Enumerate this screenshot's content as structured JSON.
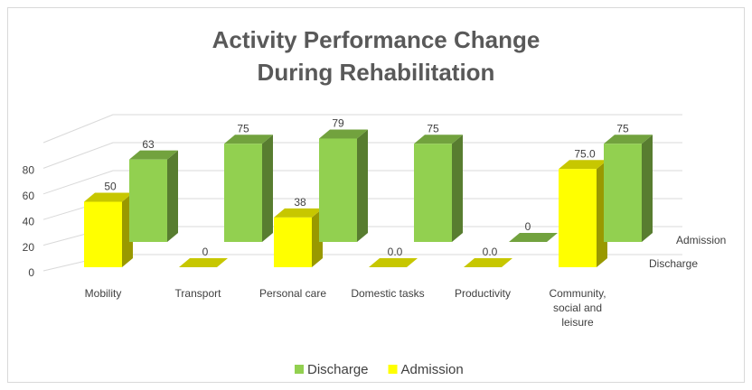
{
  "chart_data": {
    "type": "bar3d",
    "title": "Activity Performance Change During Rehabilitation",
    "categories": [
      "Mobility",
      "Transport",
      "Personal care",
      "Domestic tasks",
      "Productivity",
      "Community, social and leisure"
    ],
    "series": [
      {
        "name": "Discharge",
        "color": "#92d050",
        "values": [
          63,
          75,
          79,
          75,
          0,
          75
        ]
      },
      {
        "name": "Admission",
        "color": "#ffff00",
        "values": [
          50,
          0,
          38,
          0,
          0,
          75
        ],
        "value_labels": [
          "50",
          "0",
          "38",
          "0.0",
          "0.0",
          "75.0"
        ]
      }
    ],
    "ylim": [
      0,
      100
    ],
    "yticks": [
      0,
      20,
      40,
      60,
      80
    ],
    "grid": true,
    "legend": "bottom"
  }
}
